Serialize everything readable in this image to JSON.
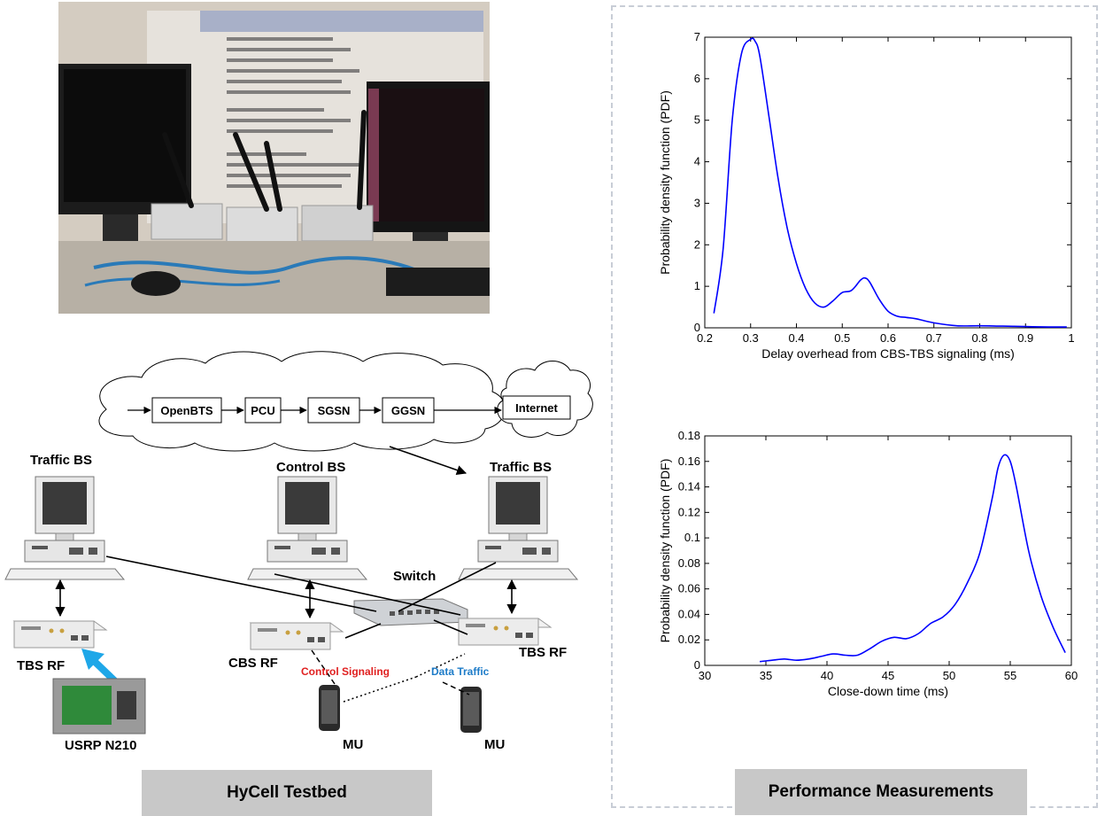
{
  "testbed": {
    "caption": "HyCell Testbed",
    "network_nodes": [
      "OpenBTS",
      "PCU",
      "SGSN",
      "GGSN"
    ],
    "internet": "Internet",
    "labels": {
      "traffic_bs_left": "Traffic BS",
      "control_bs": "Control BS",
      "traffic_bs_right": "Traffic BS",
      "switch": "Switch",
      "tbs_rf_left": "TBS RF",
      "cbs_rf": "CBS RF",
      "tbs_rf_right": "TBS RF",
      "usrp": "USRP N210",
      "mu_left": "MU",
      "mu_right": "MU",
      "control_signaling": "Control Signaling",
      "data_traffic": "Data Traffic"
    },
    "colors": {
      "control_signaling": "#e02020",
      "data_traffic": "#1e7cc8",
      "usrp_arrow": "#1ea7e8"
    }
  },
  "measurements": {
    "caption": "Performance Measurements"
  },
  "chart_data": [
    {
      "type": "line",
      "title": "",
      "xlabel": "Delay overhead from CBS-TBS signaling (ms)",
      "ylabel": "Probability density function (PDF)",
      "xlim": [
        0.2,
        1
      ],
      "ylim": [
        0,
        7
      ],
      "xticks": [
        "0.2",
        "0.3",
        "0.4",
        "0.5",
        "0.6",
        "0.7",
        "0.8",
        "0.9",
        "1"
      ],
      "yticks": [
        "0",
        "1",
        "2",
        "3",
        "4",
        "5",
        "6",
        "7"
      ],
      "series": [
        {
          "color": "#0000ff",
          "x": [
            0.22,
            0.24,
            0.26,
            0.28,
            0.3,
            0.31,
            0.32,
            0.34,
            0.36,
            0.38,
            0.4,
            0.42,
            0.44,
            0.46,
            0.48,
            0.5,
            0.52,
            0.54,
            0.55,
            0.56,
            0.58,
            0.6,
            0.62,
            0.64,
            0.66,
            0.7,
            0.75,
            0.8,
            0.85,
            0.9,
            0.95,
            0.99
          ],
          "y": [
            0.35,
            1.9,
            5.0,
            6.6,
            6.95,
            6.9,
            6.55,
            5.1,
            3.6,
            2.4,
            1.55,
            0.95,
            0.6,
            0.5,
            0.65,
            0.85,
            0.9,
            1.15,
            1.2,
            1.1,
            0.7,
            0.4,
            0.28,
            0.25,
            0.22,
            0.12,
            0.05,
            0.05,
            0.04,
            0.03,
            0.02,
            0.02
          ]
        }
      ]
    },
    {
      "type": "line",
      "title": "",
      "xlabel": "Close-down time (ms)",
      "ylabel": "Probability density function (PDF)",
      "xlim": [
        30,
        60
      ],
      "ylim": [
        0,
        0.18
      ],
      "xticks": [
        "30",
        "35",
        "40",
        "45",
        "50",
        "55",
        "60"
      ],
      "yticks": [
        "0",
        "0.02",
        "0.04",
        "0.06",
        "0.08",
        "0.1",
        "0.12",
        "0.14",
        "0.16",
        "0.18"
      ],
      "series": [
        {
          "color": "#0000ff",
          "x": [
            34.5,
            35.5,
            36.5,
            37.5,
            38.5,
            39.5,
            40.5,
            41.5,
            42.5,
            43.5,
            44.5,
            45.5,
            46.5,
            47.5,
            48.5,
            49.5,
            50.5,
            51.5,
            52.5,
            53.5,
            54.0,
            54.5,
            55.0,
            55.5,
            56.5,
            57.5,
            58.5,
            59.5
          ],
          "y": [
            0.003,
            0.004,
            0.005,
            0.004,
            0.005,
            0.007,
            0.009,
            0.008,
            0.008,
            0.013,
            0.019,
            0.022,
            0.021,
            0.025,
            0.033,
            0.038,
            0.048,
            0.065,
            0.088,
            0.13,
            0.155,
            0.165,
            0.16,
            0.14,
            0.09,
            0.055,
            0.03,
            0.01
          ]
        }
      ]
    }
  ]
}
